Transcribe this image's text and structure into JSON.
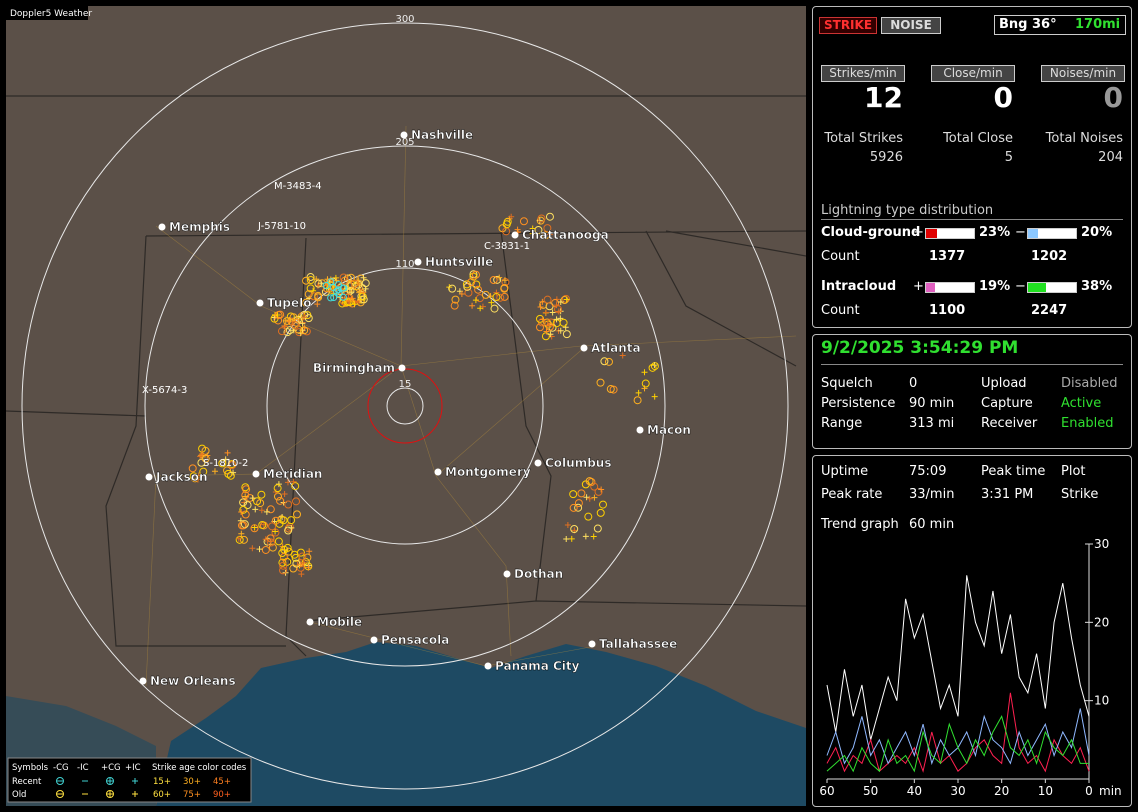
{
  "map": {
    "title": "Doppler5 Weather",
    "range_labels": [
      "300",
      "205",
      "110",
      "15"
    ],
    "cities": [
      "Nashville",
      "Memphis",
      "Tupelo",
      "Huntsville",
      "Chattanooga",
      "Birmingham",
      "Atlanta",
      "Macon",
      "Columbus",
      "Montgomery",
      "Jackson",
      "Meridian",
      "Mobile",
      "Pensacola",
      "Dothan",
      "Panama City",
      "Tallahassee",
      "New Orleans"
    ],
    "storm_ids": [
      "M-3483-4",
      "J-5781-10",
      "C-3831-1",
      "X-5674-3",
      "S-1810-2"
    ],
    "legend": {
      "symbols_label": "Symbols",
      "symbol_types": [
        "-CG",
        "-IC",
        "+CG",
        "+IC"
      ],
      "age_label": "Strike age color codes",
      "rows": [
        {
          "label": "Recent",
          "ages": [
            "15+",
            "30+",
            "45+"
          ]
        },
        {
          "label": "Old",
          "ages": [
            "60+",
            "75+",
            "90+"
          ]
        }
      ]
    }
  },
  "header": {
    "strike": "STRIKE",
    "noise": "NOISE",
    "bearing": "Bng 36°",
    "distance": "170mi"
  },
  "rates": [
    {
      "label": "Strikes/min",
      "value": 12,
      "total_label": "Total Strikes",
      "total": 5926
    },
    {
      "label": "Close/min",
      "value": 0,
      "total_label": "Total Close",
      "total": 5
    },
    {
      "label": "Noises/min",
      "value": 0,
      "total_label": "Total Noises",
      "total": 204
    }
  ],
  "distribution": {
    "title": "Lightning type distribution",
    "count_label": "Count",
    "types": [
      {
        "name": "Cloud-ground",
        "positive": {
          "sign": "+",
          "percent": {
            "value": 23,
            "label": "23%"
          },
          "count": 1377
        },
        "negative": {
          "sign": "−",
          "percent": {
            "value": 20,
            "label": "20%"
          },
          "count": 1202
        }
      },
      {
        "name": "Intracloud",
        "positive": {
          "sign": "+",
          "percent": {
            "value": 19,
            "label": "19%"
          },
          "count": 1100
        },
        "negative": {
          "sign": "−",
          "percent": {
            "value": 38,
            "label": "38%"
          },
          "count": 2247
        }
      }
    ]
  },
  "status": {
    "datetime": "9/2/2025 3:54:29 PM",
    "rows": [
      [
        "Squelch",
        "0",
        "Upload",
        "Disabled"
      ],
      [
        "Persistence",
        "90 min",
        "Capture",
        "Active"
      ],
      [
        "Range",
        "313 mi",
        "Receiver",
        "Enabled"
      ]
    ]
  },
  "stats": {
    "rows": [
      [
        "Uptime",
        "75:09",
        "Peak time",
        "Plot"
      ],
      [
        "Peak rate",
        "33/min",
        "3:31 PM",
        "Strike"
      ]
    ],
    "trend_label": "Trend graph",
    "trend_window": "60 min"
  },
  "trend_chart": {
    "type": "line",
    "x_label": "min",
    "x": [
      60,
      58,
      56,
      54,
      52,
      50,
      48,
      46,
      44,
      42,
      40,
      38,
      36,
      34,
      32,
      30,
      28,
      26,
      24,
      22,
      20,
      18,
      16,
      14,
      12,
      10,
      8,
      6,
      4,
      2,
      0
    ],
    "xlim": [
      60,
      0
    ],
    "xticks": [
      60,
      50,
      40,
      30,
      20,
      10,
      0
    ],
    "ylim": [
      0,
      30
    ],
    "yticks": [
      10,
      20,
      30
    ],
    "series": [
      {
        "color": "#ffffff",
        "values": [
          12,
          6,
          14,
          8,
          12,
          5,
          9,
          13,
          10,
          23,
          18,
          21,
          15,
          9,
          12,
          8,
          26,
          20,
          17,
          24,
          16,
          21,
          13,
          11,
          16,
          9,
          20,
          25,
          18,
          12,
          8
        ]
      },
      {
        "color": "#ff2050",
        "values": [
          2,
          4,
          1,
          3,
          2,
          5,
          1,
          2,
          3,
          2,
          4,
          1,
          6,
          2,
          3,
          1,
          2,
          4,
          5,
          3,
          2,
          11,
          4,
          2,
          3,
          1,
          5,
          3,
          2,
          4,
          1
        ]
      },
      {
        "color": "#8fb8ff",
        "values": [
          3,
          6,
          2,
          4,
          8,
          3,
          5,
          2,
          4,
          6,
          3,
          7,
          2,
          5,
          3,
          4,
          6,
          3,
          8,
          5,
          4,
          2,
          6,
          3,
          5,
          7,
          3,
          6,
          4,
          9,
          3
        ]
      },
      {
        "color": "#30e030",
        "values": [
          1,
          2,
          3,
          1,
          4,
          2,
          1,
          5,
          2,
          3,
          1,
          6,
          3,
          2,
          7,
          4,
          2,
          5,
          3,
          6,
          8,
          4,
          3,
          5,
          2,
          6,
          4,
          3,
          5,
          2,
          2
        ]
      }
    ]
  }
}
